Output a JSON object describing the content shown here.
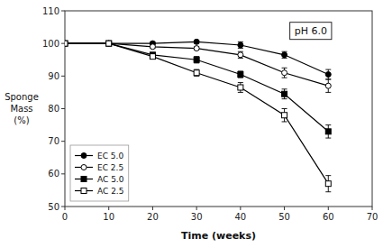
{
  "chart_data": {
    "type": "line",
    "xlabel": "Time (weeks)",
    "ylabel": "Sponge\nMass\n(%)",
    "annotation": "pH 6.0",
    "x": [
      0,
      10,
      20,
      30,
      40,
      50,
      60
    ],
    "xlim": [
      0,
      70
    ],
    "ylim": [
      50,
      110
    ],
    "xticks": [
      0,
      10,
      20,
      30,
      40,
      50,
      60,
      70
    ],
    "yticks": [
      50,
      60,
      70,
      80,
      90,
      100,
      110
    ],
    "grid": false,
    "legend": "lower left",
    "series": [
      {
        "name": "EC 5.0",
        "color": "#000000",
        "marker": "circle",
        "line_style": "solid",
        "values": [
          100,
          100,
          100,
          100.5,
          99.5,
          96.5,
          90.5
        ],
        "errors": [
          0,
          0,
          0.5,
          0.5,
          1.0,
          1.0,
          1.5
        ]
      },
      {
        "name": "EC 2.5",
        "color": "#000000",
        "marker": "circle-open",
        "line_style": "solid",
        "values": [
          100,
          100,
          99,
          98.5,
          96.5,
          91.0,
          87.0
        ],
        "errors": [
          0,
          0.5,
          0.5,
          0.5,
          1.0,
          1.5,
          2.0
        ]
      },
      {
        "name": "AC 5.0",
        "color": "#000000",
        "marker": "square",
        "line_style": "solid",
        "values": [
          100,
          100,
          96.5,
          95.0,
          90.5,
          84.5,
          73.0
        ],
        "errors": [
          0,
          0.5,
          0.5,
          1.0,
          1.0,
          1.5,
          2.0
        ]
      },
      {
        "name": "AC 2.5",
        "color": "#000000",
        "marker": "square-open",
        "line_style": "solid",
        "values": [
          100,
          100,
          96.0,
          91.0,
          86.5,
          78.0,
          57.0
        ],
        "errors": [
          0,
          0.5,
          0.5,
          1.0,
          1.5,
          2.0,
          2.5
        ]
      }
    ]
  }
}
